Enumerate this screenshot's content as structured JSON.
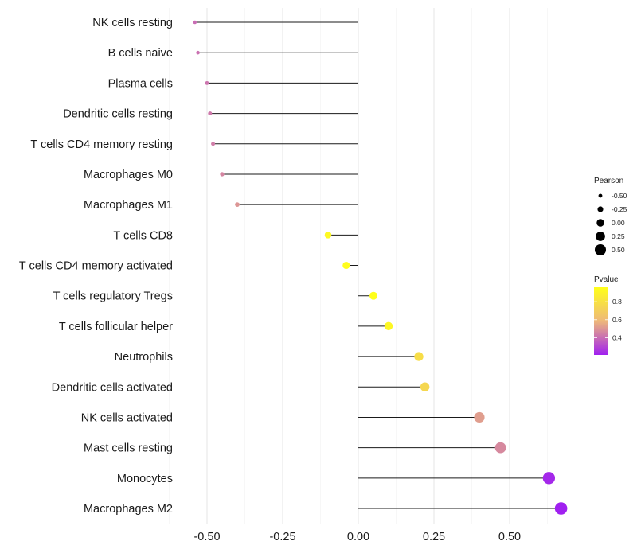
{
  "chart_data": {
    "type": "lollipop",
    "xlabel": "",
    "ylabel": "",
    "xlim": [
      -0.6,
      0.72
    ],
    "x_ticks": [
      -0.5,
      -0.25,
      0,
      0.25,
      0.5
    ],
    "x_tick_labels": [
      "-0.50",
      "-0.25",
      "0.00",
      "0.25",
      "0.50"
    ],
    "grid": true,
    "categories": [
      "NK cells resting",
      "B cells naive",
      "Plasma cells",
      "Dendritic cells resting",
      "T cells CD4 memory resting",
      "Macrophages M0",
      "Macrophages M1",
      "T cells CD8",
      "T cells CD4 memory activated",
      "T cells regulatory  Tregs ",
      "T cells follicular helper",
      "Neutrophils",
      "Dendritic cells activated",
      "NK cells activated",
      "Mast cells resting",
      "Monocytes",
      "Macrophages M2"
    ],
    "pearson": [
      -0.54,
      -0.53,
      -0.5,
      -0.49,
      -0.48,
      -0.45,
      -0.4,
      -0.1,
      -0.04,
      0.05,
      0.1,
      0.2,
      0.22,
      0.4,
      0.47,
      0.63,
      0.67
    ],
    "pvalue": [
      0.4,
      0.41,
      0.42,
      0.43,
      0.44,
      0.46,
      0.5,
      0.93,
      0.95,
      0.96,
      0.92,
      0.78,
      0.75,
      0.52,
      0.47,
      0.23,
      0.21
    ],
    "size_legend": {
      "title": "Pearson",
      "values": [
        -0.5,
        -0.25,
        0,
        0.25,
        0.5
      ],
      "labels": [
        "-0.50",
        "-0.25",
        "0.00",
        "0.25",
        "0.50"
      ]
    },
    "color_legend": {
      "title": "Pvalue",
      "min": 0.21,
      "max": 0.96,
      "ticks": [
        0.4,
        0.6,
        0.8
      ],
      "tick_labels": [
        "0.4",
        "0.6",
        "0.8"
      ],
      "low_color": "#A020F0",
      "mid_color": "#EEB87A",
      "high_color": "#FFFF1A"
    },
    "segment_color": "#1a1a1a",
    "legend_position": "right"
  }
}
